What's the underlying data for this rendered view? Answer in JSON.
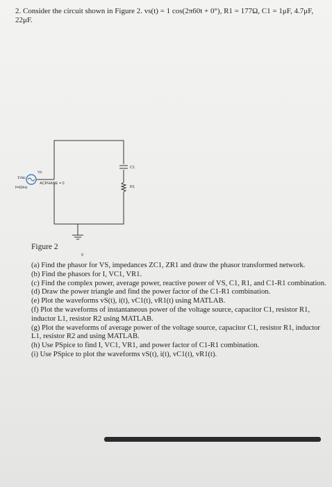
{
  "problem": {
    "statement_line1": "2. Consider the circuit shown in Figure 2. vs(t) = 1 cos(2π60t + 0°), R1 = 177Ω, C1 = 1μF, 4.7μF,",
    "statement_line2": "22μF."
  },
  "circuit": {
    "source_name": "Vs",
    "source_amp": "1Vac",
    "source_freq": "f=60Hz",
    "phase": "ACPHASE = 0",
    "c_label": "C1",
    "r_label": "R1",
    "ground": "0"
  },
  "figure_caption": "Figure 2",
  "questions": [
    "(a) Find the phasor for VS, impedances ZC1, ZR1 and draw the phasor transformed network.",
    "(b) Find the phasors for I, VC1, VR1.",
    "(c) Find the complex power, average power, reactive power of VS, C1, R1, and C1-R1 combination.",
    "(d) Draw the power triangle and find the power factor of the C1-R1 combination.",
    "(e) Plot the waveforms vS(t), i(t), vC1(t), vR1(t) using MATLAB.",
    "(f) Plot the waveforms of instantaneous power of the voltage source, capacitor C1, resistor R1, inductor L1, resistor R2 using MATLAB.",
    "(g) Plot the waveforms of average power of the voltage source, capacitor C1, resistor R1, inductor L1, resistor R2 and using MATLAB.",
    "(h) Use PSpice to find I, VC1, VR1, and power factor of C1-R1 combination.",
    "(i) Use PSpice to plot the waveforms vS(t), i(t), vC1(t), vR1(t)."
  ]
}
